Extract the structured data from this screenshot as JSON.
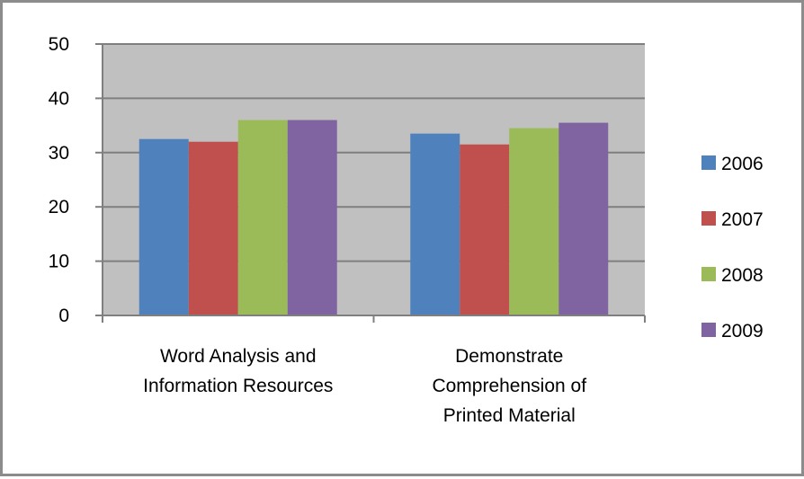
{
  "chart_data": {
    "type": "bar",
    "title": "",
    "xlabel": "",
    "ylabel": "",
    "categories": [
      [
        "Word Analysis and",
        "Information Resources"
      ],
      [
        "Demonstrate",
        "Comprehension of",
        "Printed Material"
      ]
    ],
    "series": [
      {
        "name": "2006",
        "color": "#4f81bd",
        "values": [
          32.5,
          33.5
        ]
      },
      {
        "name": "2007",
        "color": "#c0504d",
        "values": [
          32,
          31.5
        ]
      },
      {
        "name": "2008",
        "color": "#9bbb59",
        "values": [
          36,
          34.5
        ]
      },
      {
        "name": "2009",
        "color": "#8064a2",
        "values": [
          36,
          35.5
        ]
      }
    ],
    "ylim": [
      0,
      50
    ],
    "yticks": [
      0,
      10,
      20,
      30,
      40,
      50
    ],
    "grid": true,
    "plot_background": "#c0c0c0",
    "legend_position": "right"
  }
}
